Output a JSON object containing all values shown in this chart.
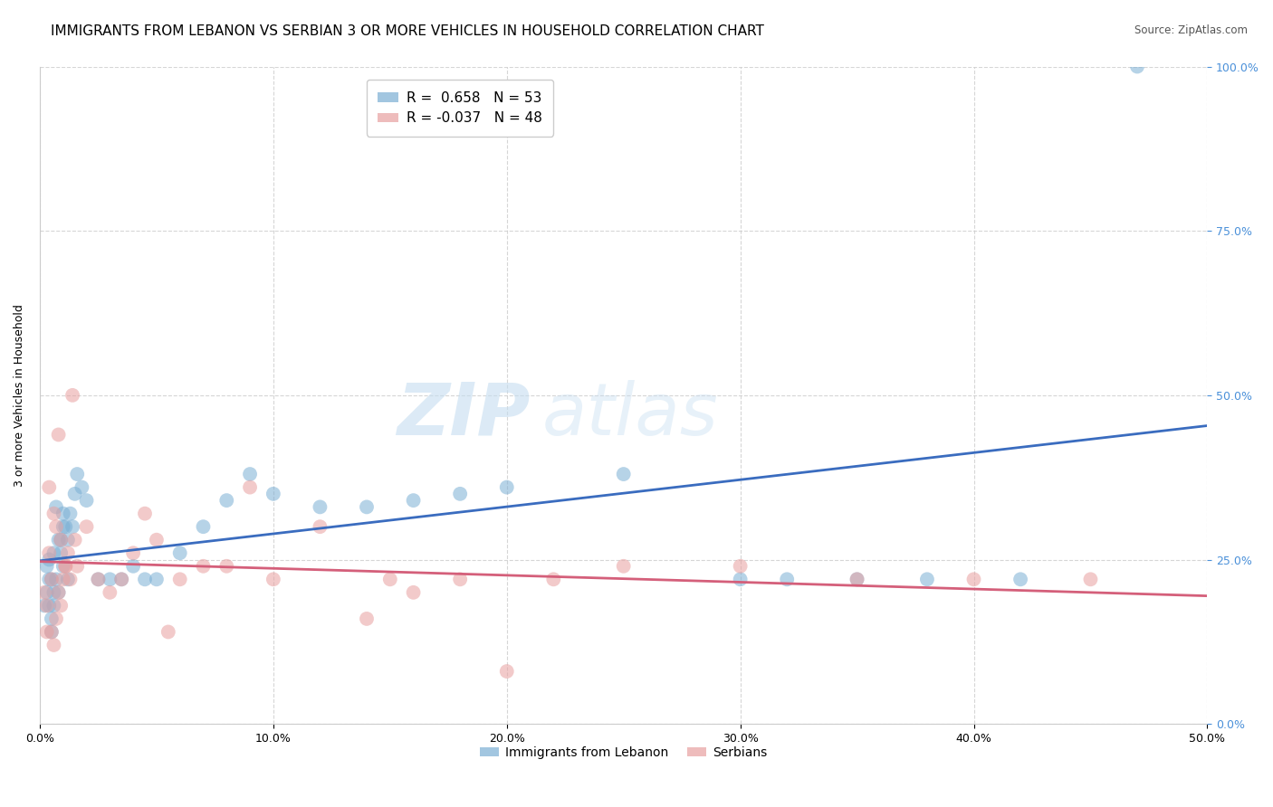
{
  "title": "IMMIGRANTS FROM LEBANON VS SERBIAN 3 OR MORE VEHICLES IN HOUSEHOLD CORRELATION CHART",
  "source": "Source: ZipAtlas.com",
  "ylabel_label": "3 or more Vehicles in Household",
  "ytick_values": [
    0,
    25,
    50,
    75,
    100
  ],
  "xtick_values": [
    0,
    10,
    20,
    30,
    40,
    50
  ],
  "watermark_zip": "ZIP",
  "watermark_atlas": "atlas",
  "blue_color": "#7bafd4",
  "pink_color": "#e8a0a0",
  "blue_line_color": "#3a6cbf",
  "pink_line_color": "#d45f7a",
  "blue_dots": [
    [
      0.5,
      22
    ],
    [
      0.6,
      18
    ],
    [
      0.8,
      28
    ],
    [
      1.0,
      30
    ],
    [
      1.2,
      22
    ],
    [
      0.3,
      20
    ],
    [
      0.4,
      25
    ],
    [
      0.7,
      33
    ],
    [
      1.5,
      35
    ],
    [
      0.9,
      28
    ],
    [
      1.1,
      30
    ],
    [
      1.3,
      32
    ],
    [
      0.2,
      18
    ],
    [
      0.4,
      22
    ],
    [
      0.6,
      26
    ],
    [
      0.8,
      20
    ],
    [
      1.0,
      24
    ],
    [
      1.2,
      28
    ],
    [
      0.5,
      16
    ],
    [
      0.7,
      22
    ],
    [
      0.3,
      24
    ],
    [
      0.9,
      26
    ],
    [
      1.4,
      30
    ],
    [
      0.6,
      20
    ],
    [
      1.6,
      38
    ],
    [
      0.4,
      18
    ],
    [
      1.8,
      36
    ],
    [
      0.5,
      14
    ],
    [
      2.0,
      34
    ],
    [
      1.0,
      32
    ],
    [
      2.5,
      22
    ],
    [
      3.0,
      22
    ],
    [
      3.5,
      22
    ],
    [
      4.0,
      24
    ],
    [
      4.5,
      22
    ],
    [
      5.0,
      22
    ],
    [
      6.0,
      26
    ],
    [
      7.0,
      30
    ],
    [
      8.0,
      34
    ],
    [
      9.0,
      38
    ],
    [
      10.0,
      35
    ],
    [
      12.0,
      33
    ],
    [
      14.0,
      33
    ],
    [
      16.0,
      34
    ],
    [
      18.0,
      35
    ],
    [
      20.0,
      36
    ],
    [
      25.0,
      38
    ],
    [
      30.0,
      22
    ],
    [
      32.0,
      22
    ],
    [
      35.0,
      22
    ],
    [
      38.0,
      22
    ],
    [
      42.0,
      22
    ],
    [
      47.0,
      100
    ]
  ],
  "pink_dots": [
    [
      0.5,
      22
    ],
    [
      0.7,
      30
    ],
    [
      0.9,
      28
    ],
    [
      1.1,
      24
    ],
    [
      0.3,
      18
    ],
    [
      0.4,
      26
    ],
    [
      0.6,
      32
    ],
    [
      0.8,
      20
    ],
    [
      1.0,
      22
    ],
    [
      1.2,
      26
    ],
    [
      0.2,
      20
    ],
    [
      1.5,
      28
    ],
    [
      0.5,
      14
    ],
    [
      0.7,
      16
    ],
    [
      1.3,
      22
    ],
    [
      0.6,
      12
    ],
    [
      0.9,
      18
    ],
    [
      1.1,
      24
    ],
    [
      0.4,
      36
    ],
    [
      0.8,
      44
    ],
    [
      1.4,
      50
    ],
    [
      0.3,
      14
    ],
    [
      1.6,
      24
    ],
    [
      2.0,
      30
    ],
    [
      2.5,
      22
    ],
    [
      3.0,
      20
    ],
    [
      3.5,
      22
    ],
    [
      4.0,
      26
    ],
    [
      4.5,
      32
    ],
    [
      5.0,
      28
    ],
    [
      5.5,
      14
    ],
    [
      6.0,
      22
    ],
    [
      7.0,
      24
    ],
    [
      8.0,
      24
    ],
    [
      9.0,
      36
    ],
    [
      10.0,
      22
    ],
    [
      12.0,
      30
    ],
    [
      14.0,
      16
    ],
    [
      15.0,
      22
    ],
    [
      16.0,
      20
    ],
    [
      18.0,
      22
    ],
    [
      20.0,
      8
    ],
    [
      22.0,
      22
    ],
    [
      25.0,
      24
    ],
    [
      30.0,
      24
    ],
    [
      35.0,
      22
    ],
    [
      40.0,
      22
    ],
    [
      45.0,
      22
    ]
  ],
  "background_color": "#ffffff",
  "grid_color": "#cccccc",
  "title_fontsize": 11,
  "axis_label_fontsize": 9,
  "tick_fontsize": 9,
  "right_tick_color": "#4a90d9"
}
